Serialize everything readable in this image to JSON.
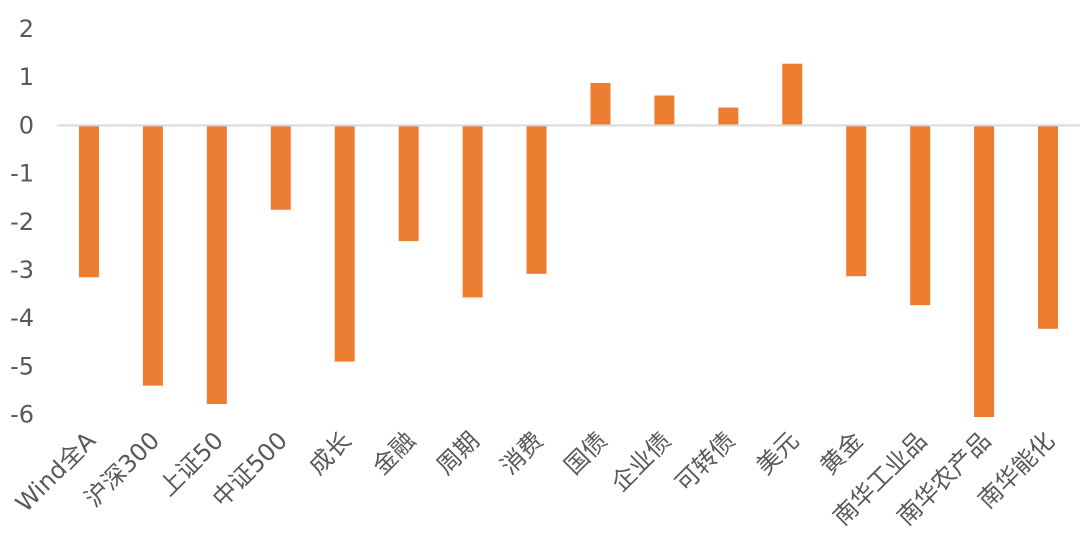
{
  "chart_data": {
    "type": "bar",
    "title": "",
    "xlabel": "",
    "ylabel": "",
    "ylim": [
      -6,
      2
    ],
    "yticks": [
      2,
      1,
      0,
      -1,
      -2,
      -3,
      -4,
      -5,
      -6
    ],
    "grid": false,
    "legend": "none",
    "bar_color": "#ED7D31",
    "axis_color": "#D9D9D9",
    "categories": [
      "Wind全A",
      "沪深300",
      "上证50",
      "中证500",
      "成长",
      "金融",
      "周期",
      "消费",
      "国债",
      "企业债",
      "可转债",
      "美元",
      "黄金",
      "南华工业品",
      "南华农产品",
      "南华能化"
    ],
    "values": [
      -3.15,
      -5.4,
      -5.78,
      -1.75,
      -4.9,
      -2.4,
      -3.57,
      -3.08,
      0.88,
      0.62,
      0.37,
      1.28,
      -3.13,
      -3.73,
      -6.05,
      -4.22
    ]
  }
}
